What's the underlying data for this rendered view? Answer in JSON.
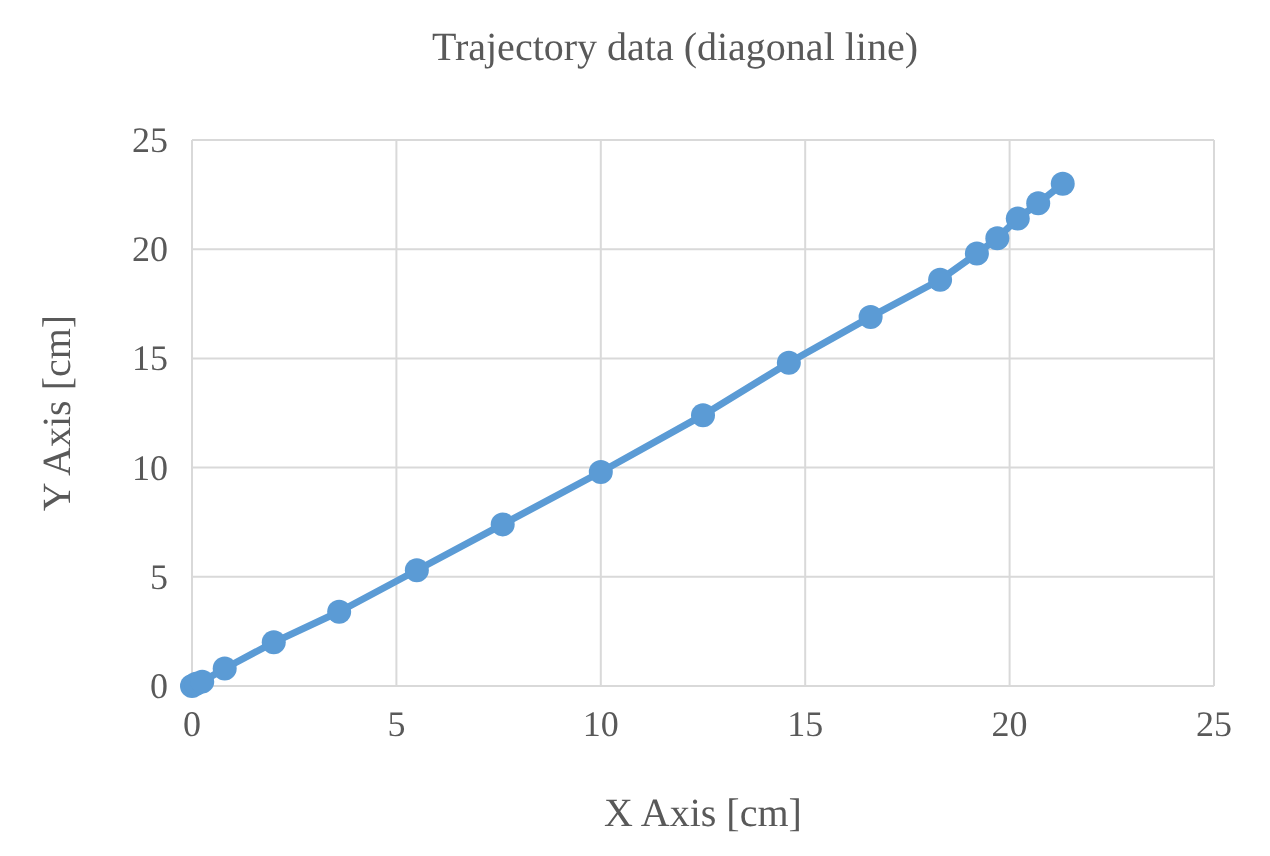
{
  "chart_data": {
    "type": "line",
    "title": "Trajectory data (diagonal line)",
    "xlabel": "X Axis [cm]",
    "ylabel": "Y Axis [cm]",
    "x": [
      0,
      0.1,
      0.25,
      0.8,
      2,
      3.6,
      5.5,
      7.6,
      10,
      12.5,
      14.6,
      16.6,
      18.3,
      19.2,
      19.7,
      20.2,
      20.7,
      21.3
    ],
    "series": [
      {
        "color": "#5b9bd5",
        "values": [
          0,
          0.1,
          0.2,
          0.8,
          2,
          3.4,
          5.3,
          7.4,
          9.8,
          12.4,
          14.8,
          16.9,
          18.6,
          19.8,
          20.5,
          21.4,
          22.1,
          23
        ]
      }
    ],
    "xlim": [
      0,
      25
    ],
    "xticks": [
      0,
      5,
      10,
      15,
      20,
      25
    ],
    "ylim": [
      0,
      25
    ],
    "yticks": [
      0,
      5,
      10,
      15,
      20,
      25
    ],
    "grid": true,
    "marker": "circle",
    "line_style": "solid"
  }
}
